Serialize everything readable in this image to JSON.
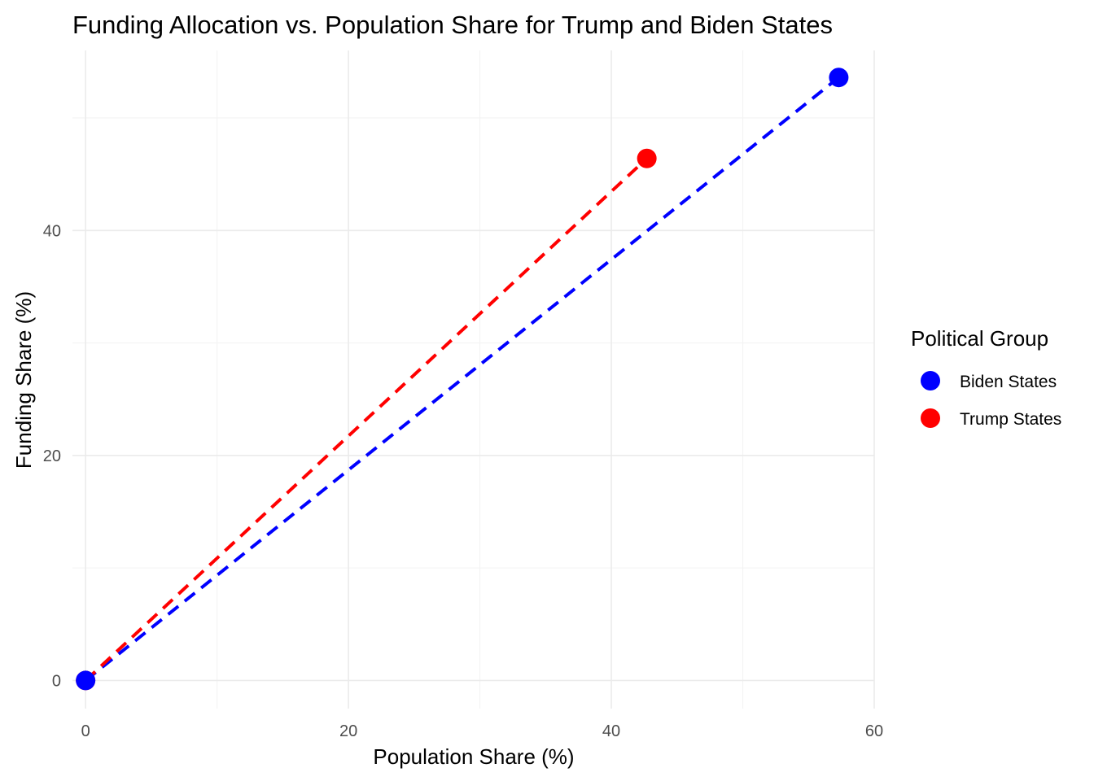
{
  "chart_data": {
    "type": "scatter",
    "title": "Funding Allocation vs. Population Share for Trump and Biden States",
    "xlabel": "Population Share (%)",
    "ylabel": "Funding Share (%)",
    "xlim": [
      -1,
      60
    ],
    "ylim": [
      -2.5,
      56
    ],
    "x_ticks": [
      0,
      20,
      40,
      60
    ],
    "x_tick_labels": [
      "0",
      "20",
      "40",
      "60"
    ],
    "y_ticks": [
      0,
      20,
      40
    ],
    "y_tick_labels": [
      "0",
      "20",
      "40"
    ],
    "x_minor_ticks": [
      10,
      30,
      50
    ],
    "y_minor_ticks": [
      10,
      30,
      50
    ],
    "grid": true,
    "line_style": "dashed",
    "legend": {
      "title": "Political Group",
      "position": "right",
      "entries": [
        "Biden States",
        "Trump States"
      ]
    },
    "series": [
      {
        "name": "Biden States",
        "color": "#0000ff",
        "points": [
          {
            "x": 0,
            "y": 0
          },
          {
            "x": 57.3,
            "y": 53.6
          }
        ]
      },
      {
        "name": "Trump States",
        "color": "#ff0000",
        "points": [
          {
            "x": 0,
            "y": 0
          },
          {
            "x": 42.7,
            "y": 46.4
          }
        ]
      }
    ]
  }
}
